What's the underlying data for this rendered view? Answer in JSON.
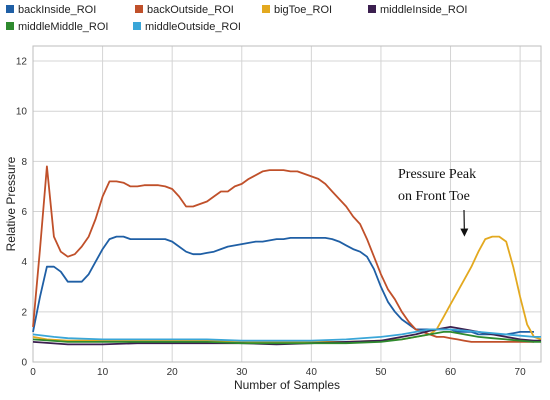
{
  "chart_data": {
    "type": "line",
    "title": "",
    "xlabel": "Number of Samples",
    "ylabel": "Relative Pressure",
    "xlim": [
      0,
      73
    ],
    "ylim": [
      0,
      12.6
    ],
    "x_ticks": [
      0,
      10,
      20,
      30,
      40,
      50,
      60,
      70
    ],
    "y_ticks": [
      0,
      2,
      4,
      6,
      8,
      10,
      12
    ],
    "grid": true,
    "legend_position": "top",
    "annotation": {
      "lines": [
        "Pressure Peak",
        "on Front Toe"
      ],
      "arrow_to": [
        62,
        5.0
      ]
    },
    "series": [
      {
        "name": "backInside_ROI",
        "color": "#1f5fa5",
        "points": [
          [
            0,
            1.2
          ],
          [
            1,
            2.6
          ],
          [
            2,
            3.8
          ],
          [
            3,
            3.8
          ],
          [
            4,
            3.6
          ],
          [
            5,
            3.2
          ],
          [
            6,
            3.2
          ],
          [
            7,
            3.2
          ],
          [
            8,
            3.5
          ],
          [
            9,
            4.0
          ],
          [
            10,
            4.5
          ],
          [
            11,
            4.9
          ],
          [
            12,
            5.0
          ],
          [
            13,
            5.0
          ],
          [
            14,
            4.9
          ],
          [
            15,
            4.9
          ],
          [
            16,
            4.9
          ],
          [
            17,
            4.9
          ],
          [
            18,
            4.9
          ],
          [
            19,
            4.9
          ],
          [
            20,
            4.8
          ],
          [
            21,
            4.6
          ],
          [
            22,
            4.4
          ],
          [
            23,
            4.3
          ],
          [
            24,
            4.3
          ],
          [
            25,
            4.35
          ],
          [
            26,
            4.4
          ],
          [
            27,
            4.5
          ],
          [
            28,
            4.6
          ],
          [
            29,
            4.65
          ],
          [
            30,
            4.7
          ],
          [
            31,
            4.75
          ],
          [
            32,
            4.8
          ],
          [
            33,
            4.8
          ],
          [
            34,
            4.85
          ],
          [
            35,
            4.9
          ],
          [
            36,
            4.9
          ],
          [
            37,
            4.95
          ],
          [
            38,
            4.95
          ],
          [
            39,
            4.95
          ],
          [
            40,
            4.95
          ],
          [
            41,
            4.95
          ],
          [
            42,
            4.95
          ],
          [
            43,
            4.9
          ],
          [
            44,
            4.8
          ],
          [
            45,
            4.65
          ],
          [
            46,
            4.5
          ],
          [
            47,
            4.4
          ],
          [
            48,
            4.2
          ],
          [
            49,
            3.7
          ],
          [
            50,
            3.0
          ],
          [
            51,
            2.4
          ],
          [
            52,
            2.0
          ],
          [
            53,
            1.7
          ],
          [
            54,
            1.5
          ],
          [
            55,
            1.3
          ],
          [
            56,
            1.3
          ],
          [
            57,
            1.3
          ],
          [
            58,
            1.3
          ],
          [
            59,
            1.3
          ],
          [
            60,
            1.3
          ],
          [
            61,
            1.2
          ],
          [
            62,
            1.2
          ],
          [
            63,
            1.2
          ],
          [
            64,
            1.1
          ],
          [
            65,
            1.1
          ],
          [
            66,
            1.1
          ],
          [
            67,
            1.1
          ],
          [
            68,
            1.1
          ],
          [
            69,
            1.15
          ],
          [
            70,
            1.2
          ],
          [
            71,
            1.2
          ],
          [
            72,
            1.2
          ]
        ]
      },
      {
        "name": "backOutside_ROI",
        "color": "#c0502a",
        "points": [
          [
            0,
            1.4
          ],
          [
            1,
            4.5
          ],
          [
            2,
            7.8
          ],
          [
            3,
            5.0
          ],
          [
            4,
            4.4
          ],
          [
            5,
            4.2
          ],
          [
            6,
            4.3
          ],
          [
            7,
            4.6
          ],
          [
            8,
            5.0
          ],
          [
            9,
            5.7
          ],
          [
            10,
            6.6
          ],
          [
            11,
            7.2
          ],
          [
            12,
            7.2
          ],
          [
            13,
            7.15
          ],
          [
            14,
            7.0
          ],
          [
            15,
            7.0
          ],
          [
            16,
            7.05
          ],
          [
            17,
            7.05
          ],
          [
            18,
            7.05
          ],
          [
            19,
            7.0
          ],
          [
            20,
            6.9
          ],
          [
            21,
            6.6
          ],
          [
            22,
            6.2
          ],
          [
            23,
            6.2
          ],
          [
            24,
            6.3
          ],
          [
            25,
            6.4
          ],
          [
            26,
            6.6
          ],
          [
            27,
            6.8
          ],
          [
            28,
            6.8
          ],
          [
            29,
            7.0
          ],
          [
            30,
            7.1
          ],
          [
            31,
            7.3
          ],
          [
            32,
            7.45
          ],
          [
            33,
            7.6
          ],
          [
            34,
            7.65
          ],
          [
            35,
            7.65
          ],
          [
            36,
            7.65
          ],
          [
            37,
            7.6
          ],
          [
            38,
            7.6
          ],
          [
            39,
            7.5
          ],
          [
            40,
            7.4
          ],
          [
            41,
            7.3
          ],
          [
            42,
            7.1
          ],
          [
            43,
            6.8
          ],
          [
            44,
            6.5
          ],
          [
            45,
            6.2
          ],
          [
            46,
            5.8
          ],
          [
            47,
            5.5
          ],
          [
            48,
            4.9
          ],
          [
            49,
            4.2
          ],
          [
            50,
            3.5
          ],
          [
            51,
            2.9
          ],
          [
            52,
            2.5
          ],
          [
            53,
            2.0
          ],
          [
            54,
            1.6
          ],
          [
            55,
            1.3
          ],
          [
            56,
            1.2
          ],
          [
            57,
            1.1
          ],
          [
            58,
            1.0
          ],
          [
            59,
            1.0
          ],
          [
            60,
            0.95
          ],
          [
            61,
            0.9
          ],
          [
            62,
            0.85
          ],
          [
            63,
            0.8
          ],
          [
            64,
            0.8
          ],
          [
            65,
            0.8
          ],
          [
            66,
            0.8
          ],
          [
            67,
            0.8
          ],
          [
            68,
            0.8
          ],
          [
            69,
            0.8
          ],
          [
            70,
            0.8
          ],
          [
            71,
            0.8
          ],
          [
            72,
            0.8
          ]
        ]
      },
      {
        "name": "bigToe_ROI",
        "color": "#e3a91f",
        "points": [
          [
            0,
            1.0
          ],
          [
            2,
            0.9
          ],
          [
            5,
            0.85
          ],
          [
            10,
            0.85
          ],
          [
            15,
            0.85
          ],
          [
            20,
            0.85
          ],
          [
            25,
            0.85
          ],
          [
            30,
            0.8
          ],
          [
            35,
            0.8
          ],
          [
            40,
            0.8
          ],
          [
            45,
            0.8
          ],
          [
            50,
            0.85
          ],
          [
            53,
            0.9
          ],
          [
            55,
            1.0
          ],
          [
            57,
            1.1
          ],
          [
            58,
            1.3
          ],
          [
            59,
            1.8
          ],
          [
            60,
            2.3
          ],
          [
            61,
            2.8
          ],
          [
            62,
            3.3
          ],
          [
            63,
            3.8
          ],
          [
            64,
            4.4
          ],
          [
            65,
            4.9
          ],
          [
            66,
            5.0
          ],
          [
            67,
            5.0
          ],
          [
            68,
            4.8
          ],
          [
            69,
            3.8
          ],
          [
            70,
            2.6
          ],
          [
            71,
            1.5
          ],
          [
            72,
            1.0
          ],
          [
            73,
            0.9
          ]
        ]
      },
      {
        "name": "middleInside_ROI",
        "color": "#3b1f4f",
        "points": [
          [
            0,
            0.8
          ],
          [
            5,
            0.7
          ],
          [
            10,
            0.7
          ],
          [
            15,
            0.75
          ],
          [
            20,
            0.75
          ],
          [
            25,
            0.75
          ],
          [
            30,
            0.75
          ],
          [
            35,
            0.7
          ],
          [
            40,
            0.75
          ],
          [
            45,
            0.8
          ],
          [
            50,
            0.85
          ],
          [
            53,
            1.0
          ],
          [
            55,
            1.1
          ],
          [
            57,
            1.25
          ],
          [
            59,
            1.35
          ],
          [
            60,
            1.4
          ],
          [
            62,
            1.3
          ],
          [
            64,
            1.2
          ],
          [
            66,
            1.1
          ],
          [
            68,
            1.0
          ],
          [
            70,
            0.9
          ],
          [
            72,
            0.85
          ],
          [
            73,
            0.85
          ]
        ]
      },
      {
        "name": "middleMiddle_ROI",
        "color": "#2e8a2e",
        "points": [
          [
            0,
            0.9
          ],
          [
            5,
            0.8
          ],
          [
            10,
            0.8
          ],
          [
            15,
            0.8
          ],
          [
            20,
            0.8
          ],
          [
            25,
            0.8
          ],
          [
            30,
            0.75
          ],
          [
            35,
            0.75
          ],
          [
            40,
            0.75
          ],
          [
            45,
            0.75
          ],
          [
            50,
            0.8
          ],
          [
            53,
            0.9
          ],
          [
            55,
            1.0
          ],
          [
            57,
            1.1
          ],
          [
            59,
            1.2
          ],
          [
            60,
            1.2
          ],
          [
            62,
            1.1
          ],
          [
            64,
            1.0
          ],
          [
            66,
            0.95
          ],
          [
            68,
            0.9
          ],
          [
            70,
            0.85
          ],
          [
            72,
            0.8
          ],
          [
            73,
            0.8
          ]
        ]
      },
      {
        "name": "middleOutside_ROI",
        "color": "#3aa6d8",
        "points": [
          [
            0,
            1.1
          ],
          [
            3,
            1.0
          ],
          [
            5,
            0.95
          ],
          [
            10,
            0.9
          ],
          [
            15,
            0.9
          ],
          [
            20,
            0.9
          ],
          [
            25,
            0.9
          ],
          [
            30,
            0.85
          ],
          [
            35,
            0.85
          ],
          [
            40,
            0.85
          ],
          [
            45,
            0.9
          ],
          [
            50,
            1.0
          ],
          [
            53,
            1.1
          ],
          [
            55,
            1.2
          ],
          [
            57,
            1.3
          ],
          [
            59,
            1.3
          ],
          [
            60,
            1.3
          ],
          [
            62,
            1.25
          ],
          [
            64,
            1.2
          ],
          [
            66,
            1.15
          ],
          [
            68,
            1.1
          ],
          [
            70,
            1.05
          ],
          [
            72,
            1.0
          ],
          [
            73,
            1.0
          ]
        ]
      }
    ]
  }
}
